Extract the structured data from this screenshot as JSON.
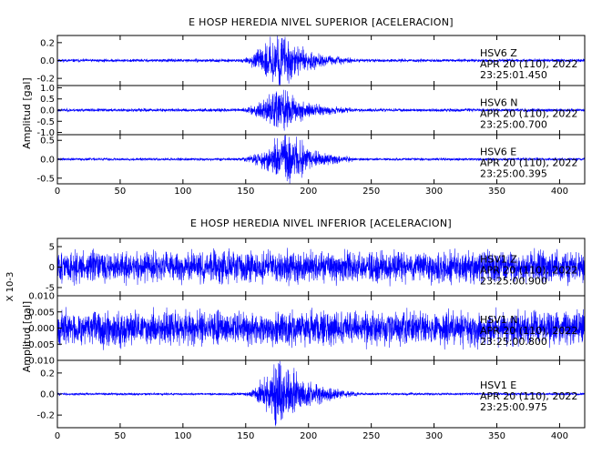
{
  "chart_data": [
    {
      "type": "line",
      "title": "E HOSP HEREDIA NIVEL SUPERIOR [ACELERACION]",
      "ylabel": "Amplitud [gal]",
      "xlabel": "",
      "xlim": [
        0,
        420
      ],
      "xticks": [
        0,
        50,
        100,
        150,
        200,
        250,
        300,
        350,
        400
      ],
      "line_color": "#0000ff",
      "grid": false,
      "panels": [
        {
          "channel": "HSV6 Z",
          "date": "APR 20 (110), 2022",
          "time": "23:25:01.450",
          "ylim": [
            -0.28,
            0.28
          ],
          "yticks": [
            {
              "v": 0.2,
              "l": "0.2"
            },
            {
              "v": 0.0,
              "l": "0.0"
            },
            {
              "v": -0.2,
              "l": "-0.2"
            }
          ],
          "signal": {
            "noise": 0.012,
            "onset": 145,
            "peak": 178,
            "end": 235,
            "amp": 0.22,
            "seed": 11
          }
        },
        {
          "channel": "HSV6 N",
          "date": "APR 20 (110), 2022",
          "time": "23:25:00.700",
          "ylim": [
            -1.1,
            1.1
          ],
          "yticks": [
            {
              "v": 1.0,
              "l": "1.0"
            },
            {
              "v": 0.5,
              "l": "0.5"
            },
            {
              "v": 0.0,
              "l": "0.0"
            },
            {
              "v": -0.5,
              "l": "-0.5"
            },
            {
              "v": -1.0,
              "l": "-1.0"
            }
          ],
          "signal": {
            "noise": 0.05,
            "onset": 145,
            "peak": 178,
            "end": 235,
            "amp": 0.72,
            "seed": 23
          }
        },
        {
          "channel": "HSV6 E",
          "date": "APR 20 (110), 2022",
          "time": "23:25:00.395",
          "ylim": [
            -0.65,
            0.65
          ],
          "yticks": [
            {
              "v": 0.5,
              "l": "0.5"
            },
            {
              "v": 0.0,
              "l": "0.0"
            },
            {
              "v": -0.5,
              "l": "-0.5"
            }
          ],
          "signal": {
            "noise": 0.025,
            "onset": 145,
            "peak": 185,
            "end": 235,
            "amp": 0.52,
            "seed": 37
          }
        }
      ]
    },
    {
      "type": "line",
      "title": "E HOSP HEREDIA NIVEL INFERIOR [ACELERACION]",
      "ylabel": "Amplitud [gal]",
      "xlabel": "",
      "xlim": [
        0,
        420
      ],
      "xticks": [
        0,
        50,
        100,
        150,
        200,
        250,
        300,
        350,
        400
      ],
      "line_color": "#0000ff",
      "grid": false,
      "panels": [
        {
          "channel": "HSV1 Z",
          "date": "APR 20 (110), 2022",
          "time": "23:25:00.900",
          "scale_label": "X 10-3",
          "ylim": [
            -7,
            7
          ],
          "yticks": [
            {
              "v": 5,
              "l": "5"
            },
            {
              "v": 0,
              "l": "0"
            },
            {
              "v": -5,
              "l": "-5"
            }
          ],
          "signal": {
            "noise": 2.6,
            "onset": 0,
            "peak": 0,
            "end": 0,
            "amp": 0,
            "seed": 51
          }
        },
        {
          "channel": "HSV1 N",
          "date": "APR 20 (110), 2022",
          "time": "23:25:00.800",
          "ylim": [
            -0.01,
            0.01
          ],
          "yticks": [
            {
              "v": 0.01,
              "l": "0.010"
            },
            {
              "v": 0.005,
              "l": "0.005"
            },
            {
              "v": 0.0,
              "l": "0.000"
            },
            {
              "v": -0.005,
              "l": "-0.005"
            },
            {
              "v": -0.01,
              "l": "-0.010"
            }
          ],
          "signal": {
            "noise": 0.0036,
            "onset": 0,
            "peak": 0,
            "end": 0,
            "amp": 0,
            "seed": 67
          }
        },
        {
          "channel": "HSV1 E",
          "date": "APR 20 (110), 2022",
          "time": "23:25:00.975",
          "ylim": [
            -0.32,
            0.32
          ],
          "yticks": [
            {
              "v": 0.2,
              "l": "0.2"
            },
            {
              "v": 0.0,
              "l": "0.0"
            },
            {
              "v": -0.2,
              "l": "-0.2"
            }
          ],
          "signal": {
            "noise": 0.008,
            "onset": 148,
            "peak": 178,
            "end": 240,
            "amp": 0.25,
            "seed": 83
          }
        }
      ]
    }
  ]
}
